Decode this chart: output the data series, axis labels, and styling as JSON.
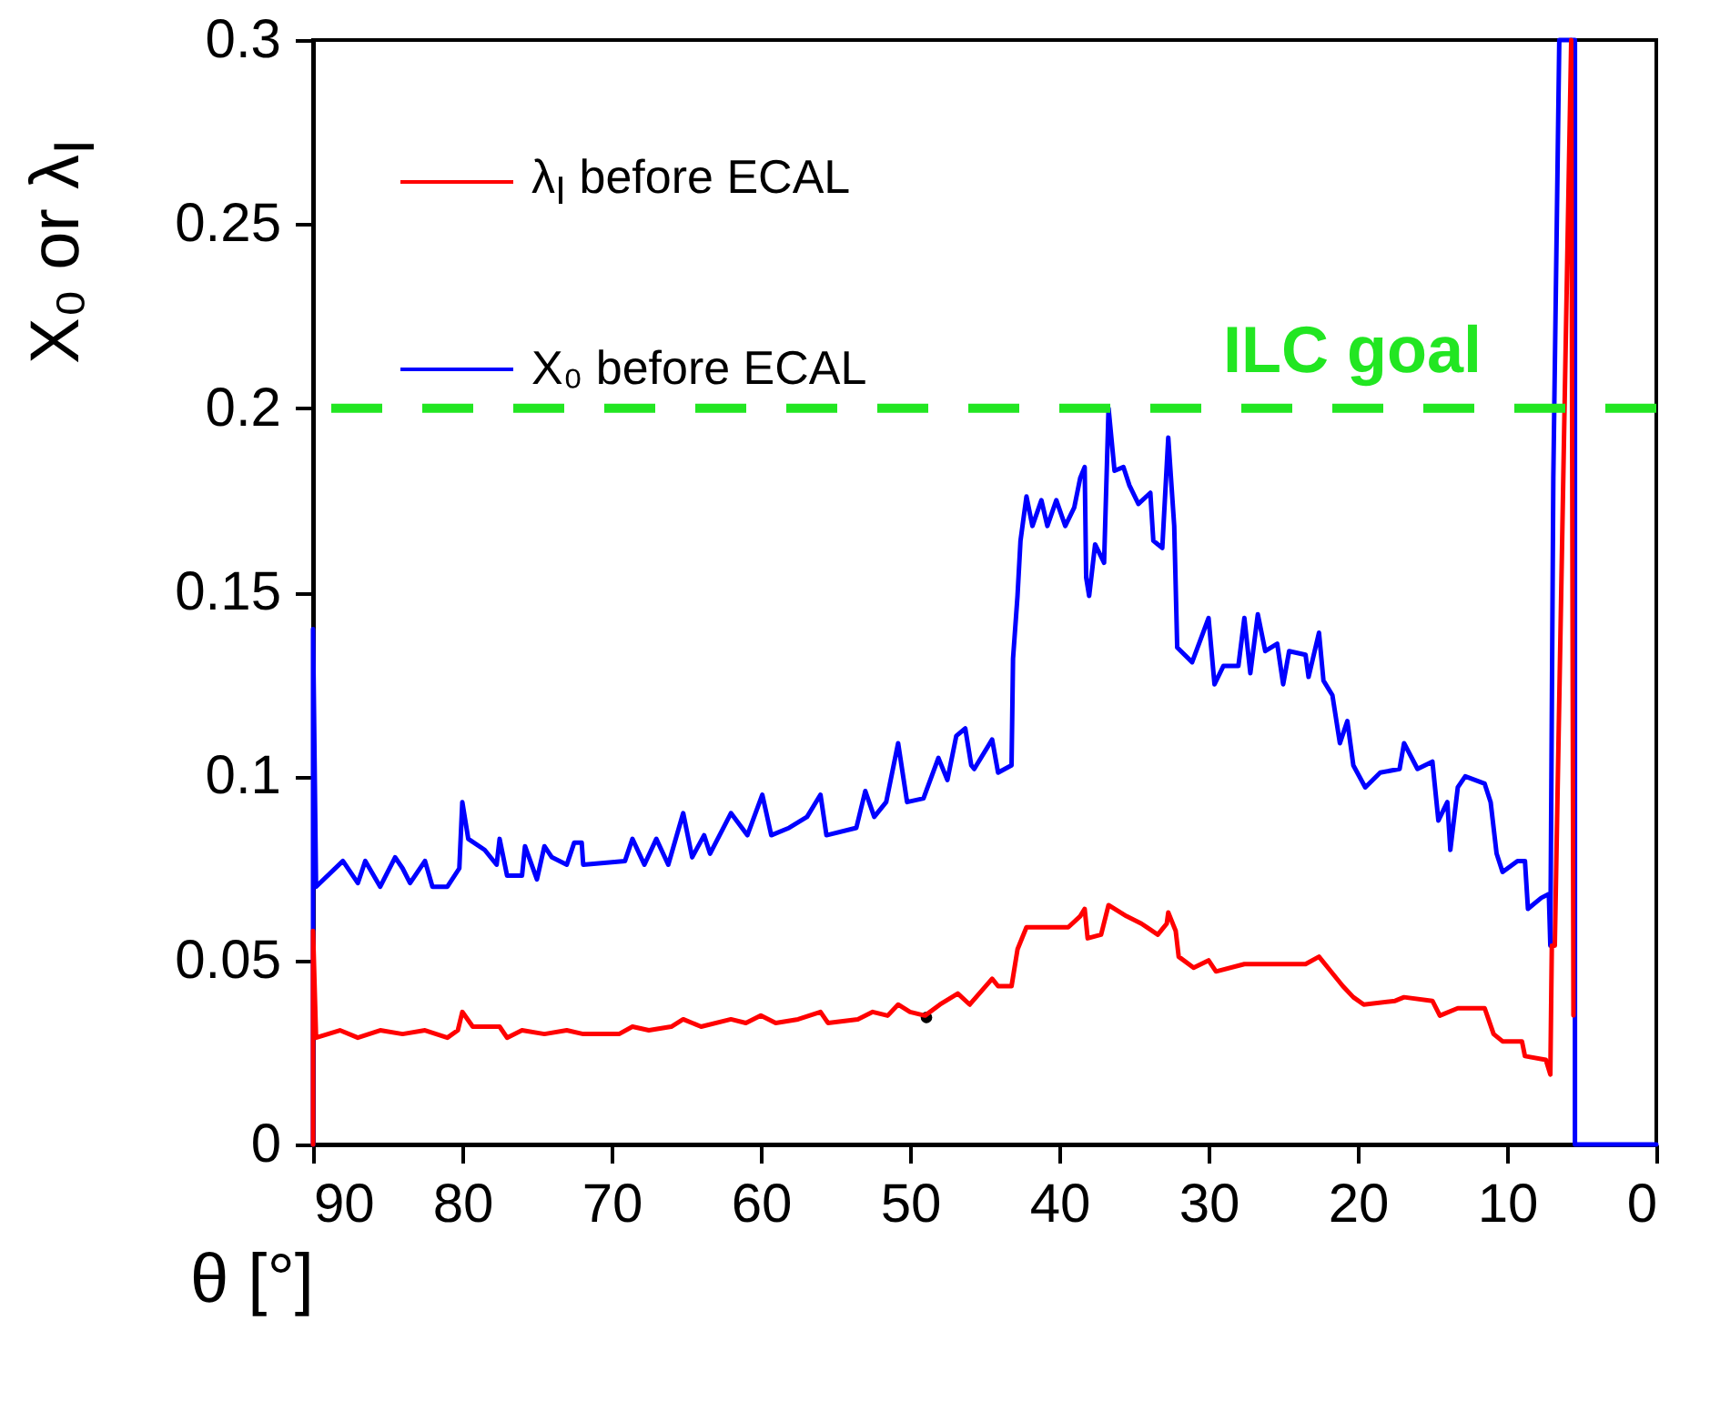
{
  "chart_data": {
    "type": "line",
    "xlabel": "θ [°]",
    "ylabel": "X₀ or λ$_{I}$",
    "xlim": [
      90,
      0
    ],
    "ylim": [
      0,
      0.3
    ],
    "xticks": [
      90,
      80,
      70,
      60,
      50,
      40,
      30,
      20,
      10,
      0
    ],
    "yticks": [
      0,
      0.05,
      0.1,
      0.15,
      0.2,
      0.25,
      0.3
    ],
    "grid": false,
    "legend": "top left",
    "series": [
      {
        "name": "λ$_{I}$ before ECAL",
        "color": "#ff0000",
        "x": [
          90,
          90,
          89.8,
          88.2,
          87,
          85.5,
          84,
          82.5,
          81,
          80.3,
          80,
          79.3,
          77.5,
          77,
          76,
          74.5,
          73,
          71.9,
          69.5,
          68.6,
          67.5,
          66,
          65.2,
          64,
          62,
          61,
          60,
          59,
          57.5,
          56,
          55.5,
          53.5,
          52.5,
          51.5,
          50.8,
          50,
          49,
          48,
          46.8,
          46,
          44.5,
          44.1,
          43.2,
          42.8,
          42.2,
          40.5,
          39.4,
          38.6,
          38.3,
          38.1,
          37.2,
          36.7,
          35.5,
          34.5,
          33.4,
          32.8,
          32.7,
          32.2,
          32,
          31,
          30,
          29.5,
          27.6,
          26,
          23.5,
          22.6,
          22,
          21,
          20.3,
          19.6,
          17.5,
          16.9,
          15,
          14.5,
          13.3,
          11.5,
          10.9,
          10.3,
          9,
          8.8,
          7.4,
          7.1,
          7,
          6.8,
          5.7,
          5.55
        ],
        "values": [
          0,
          0.058,
          0.029,
          0.031,
          0.029,
          0.031,
          0.03,
          0.031,
          0.029,
          0.031,
          0.036,
          0.032,
          0.032,
          0.029,
          0.031,
          0.03,
          0.031,
          0.03,
          0.03,
          0.032,
          0.031,
          0.032,
          0.034,
          0.032,
          0.034,
          0.033,
          0.035,
          0.033,
          0.034,
          0.036,
          0.033,
          0.034,
          0.036,
          0.035,
          0.038,
          0.036,
          0.035,
          0.038,
          0.041,
          0.038,
          0.045,
          0.043,
          0.043,
          0.053,
          0.059,
          0.059,
          0.059,
          0.062,
          0.064,
          0.056,
          0.057,
          0.065,
          0.062,
          0.06,
          0.057,
          0.06,
          0.063,
          0.058,
          0.051,
          0.048,
          0.05,
          0.047,
          0.049,
          0.049,
          0.049,
          0.051,
          0.048,
          0.043,
          0.04,
          0.038,
          0.039,
          0.04,
          0.039,
          0.035,
          0.037,
          0.037,
          0.03,
          0.028,
          0.028,
          0.024,
          0.023,
          0.019,
          0.054,
          0.054,
          0.3,
          0.035
        ]
      },
      {
        "name": "X₀ before ECAL",
        "color": "#0000ff",
        "x": [
          90,
          90,
          89.8,
          88,
          87,
          86.5,
          85.5,
          84.5,
          84,
          83.5,
          82.5,
          82,
          81,
          80.2,
          80,
          79.6,
          78.5,
          77.7,
          77.5,
          77,
          76,
          75.8,
          75,
          74.5,
          74,
          73,
          72.5,
          72,
          71.9,
          69.1,
          68.6,
          67.8,
          67,
          66.2,
          65.2,
          64.6,
          63.8,
          63.4,
          62,
          60.9,
          59.9,
          59.3,
          58.1,
          56.9,
          56,
          55.6,
          53.6,
          53,
          52.4,
          51.6,
          50.8,
          50.2,
          49.1,
          48.1,
          47.5,
          46.9,
          46.3,
          45.9,
          45.7,
          44.5,
          44.1,
          43.2,
          43.1,
          42.8,
          42.6,
          42.2,
          41.8,
          41.2,
          40.8,
          40.2,
          39.6,
          39,
          38.6,
          38.3,
          38.2,
          38,
          37.6,
          37,
          36.7,
          36.3,
          35.7,
          35.3,
          34.7,
          33.9,
          33.7,
          33.1,
          32.7,
          32.3,
          32.1,
          31.1,
          30,
          29.6,
          29,
          28,
          27.6,
          27.2,
          26.7,
          26.2,
          25.4,
          25,
          24.6,
          23.5,
          23.3,
          22.6,
          22.3,
          21.7,
          21.2,
          20.7,
          20.3,
          19.5,
          18.5,
          17.2,
          16.9,
          16,
          15,
          14.6,
          14,
          13.8,
          13.3,
          12.8,
          11.5,
          11.1,
          10.7,
          10.3,
          9.3,
          8.8,
          8.6,
          7.7,
          7.2,
          7.1,
          6.9,
          6.5,
          5.45,
          5.45,
          0
        ],
        "values": [
          0,
          0.14,
          0.07,
          0.077,
          0.071,
          0.077,
          0.07,
          0.078,
          0.075,
          0.071,
          0.077,
          0.07,
          0.07,
          0.075,
          0.093,
          0.083,
          0.08,
          0.076,
          0.083,
          0.073,
          0.073,
          0.081,
          0.072,
          0.081,
          0.078,
          0.076,
          0.082,
          0.082,
          0.076,
          0.077,
          0.083,
          0.076,
          0.083,
          0.076,
          0.09,
          0.078,
          0.084,
          0.079,
          0.09,
          0.084,
          0.095,
          0.084,
          0.086,
          0.089,
          0.095,
          0.084,
          0.086,
          0.096,
          0.089,
          0.093,
          0.109,
          0.093,
          0.094,
          0.105,
          0.099,
          0.111,
          0.113,
          0.103,
          0.102,
          0.11,
          0.101,
          0.103,
          0.132,
          0.149,
          0.164,
          0.176,
          0.168,
          0.175,
          0.168,
          0.175,
          0.168,
          0.173,
          0.181,
          0.184,
          0.154,
          0.149,
          0.163,
          0.158,
          0.2,
          0.183,
          0.184,
          0.179,
          0.174,
          0.177,
          0.164,
          0.162,
          0.192,
          0.168,
          0.135,
          0.131,
          0.143,
          0.125,
          0.13,
          0.13,
          0.143,
          0.128,
          0.144,
          0.134,
          0.136,
          0.125,
          0.134,
          0.133,
          0.127,
          0.139,
          0.126,
          0.122,
          0.109,
          0.115,
          0.103,
          0.097,
          0.101,
          0.102,
          0.109,
          0.102,
          0.104,
          0.088,
          0.093,
          0.08,
          0.097,
          0.1,
          0.098,
          0.093,
          0.079,
          0.074,
          0.077,
          0.077,
          0.064,
          0.067,
          0.068,
          0.054,
          0.181,
          0.3,
          0.3,
          0,
          0
        ]
      },
      {
        "type": "scatter",
        "color": "#000000",
        "x": [
          48.9
        ],
        "values": [
          0.0345
        ]
      }
    ],
    "ref_lines": [
      {
        "axis": "y",
        "value": 0.2,
        "label": "ILC goal",
        "color": "#22e622",
        "line_style": "dashed"
      }
    ]
  }
}
